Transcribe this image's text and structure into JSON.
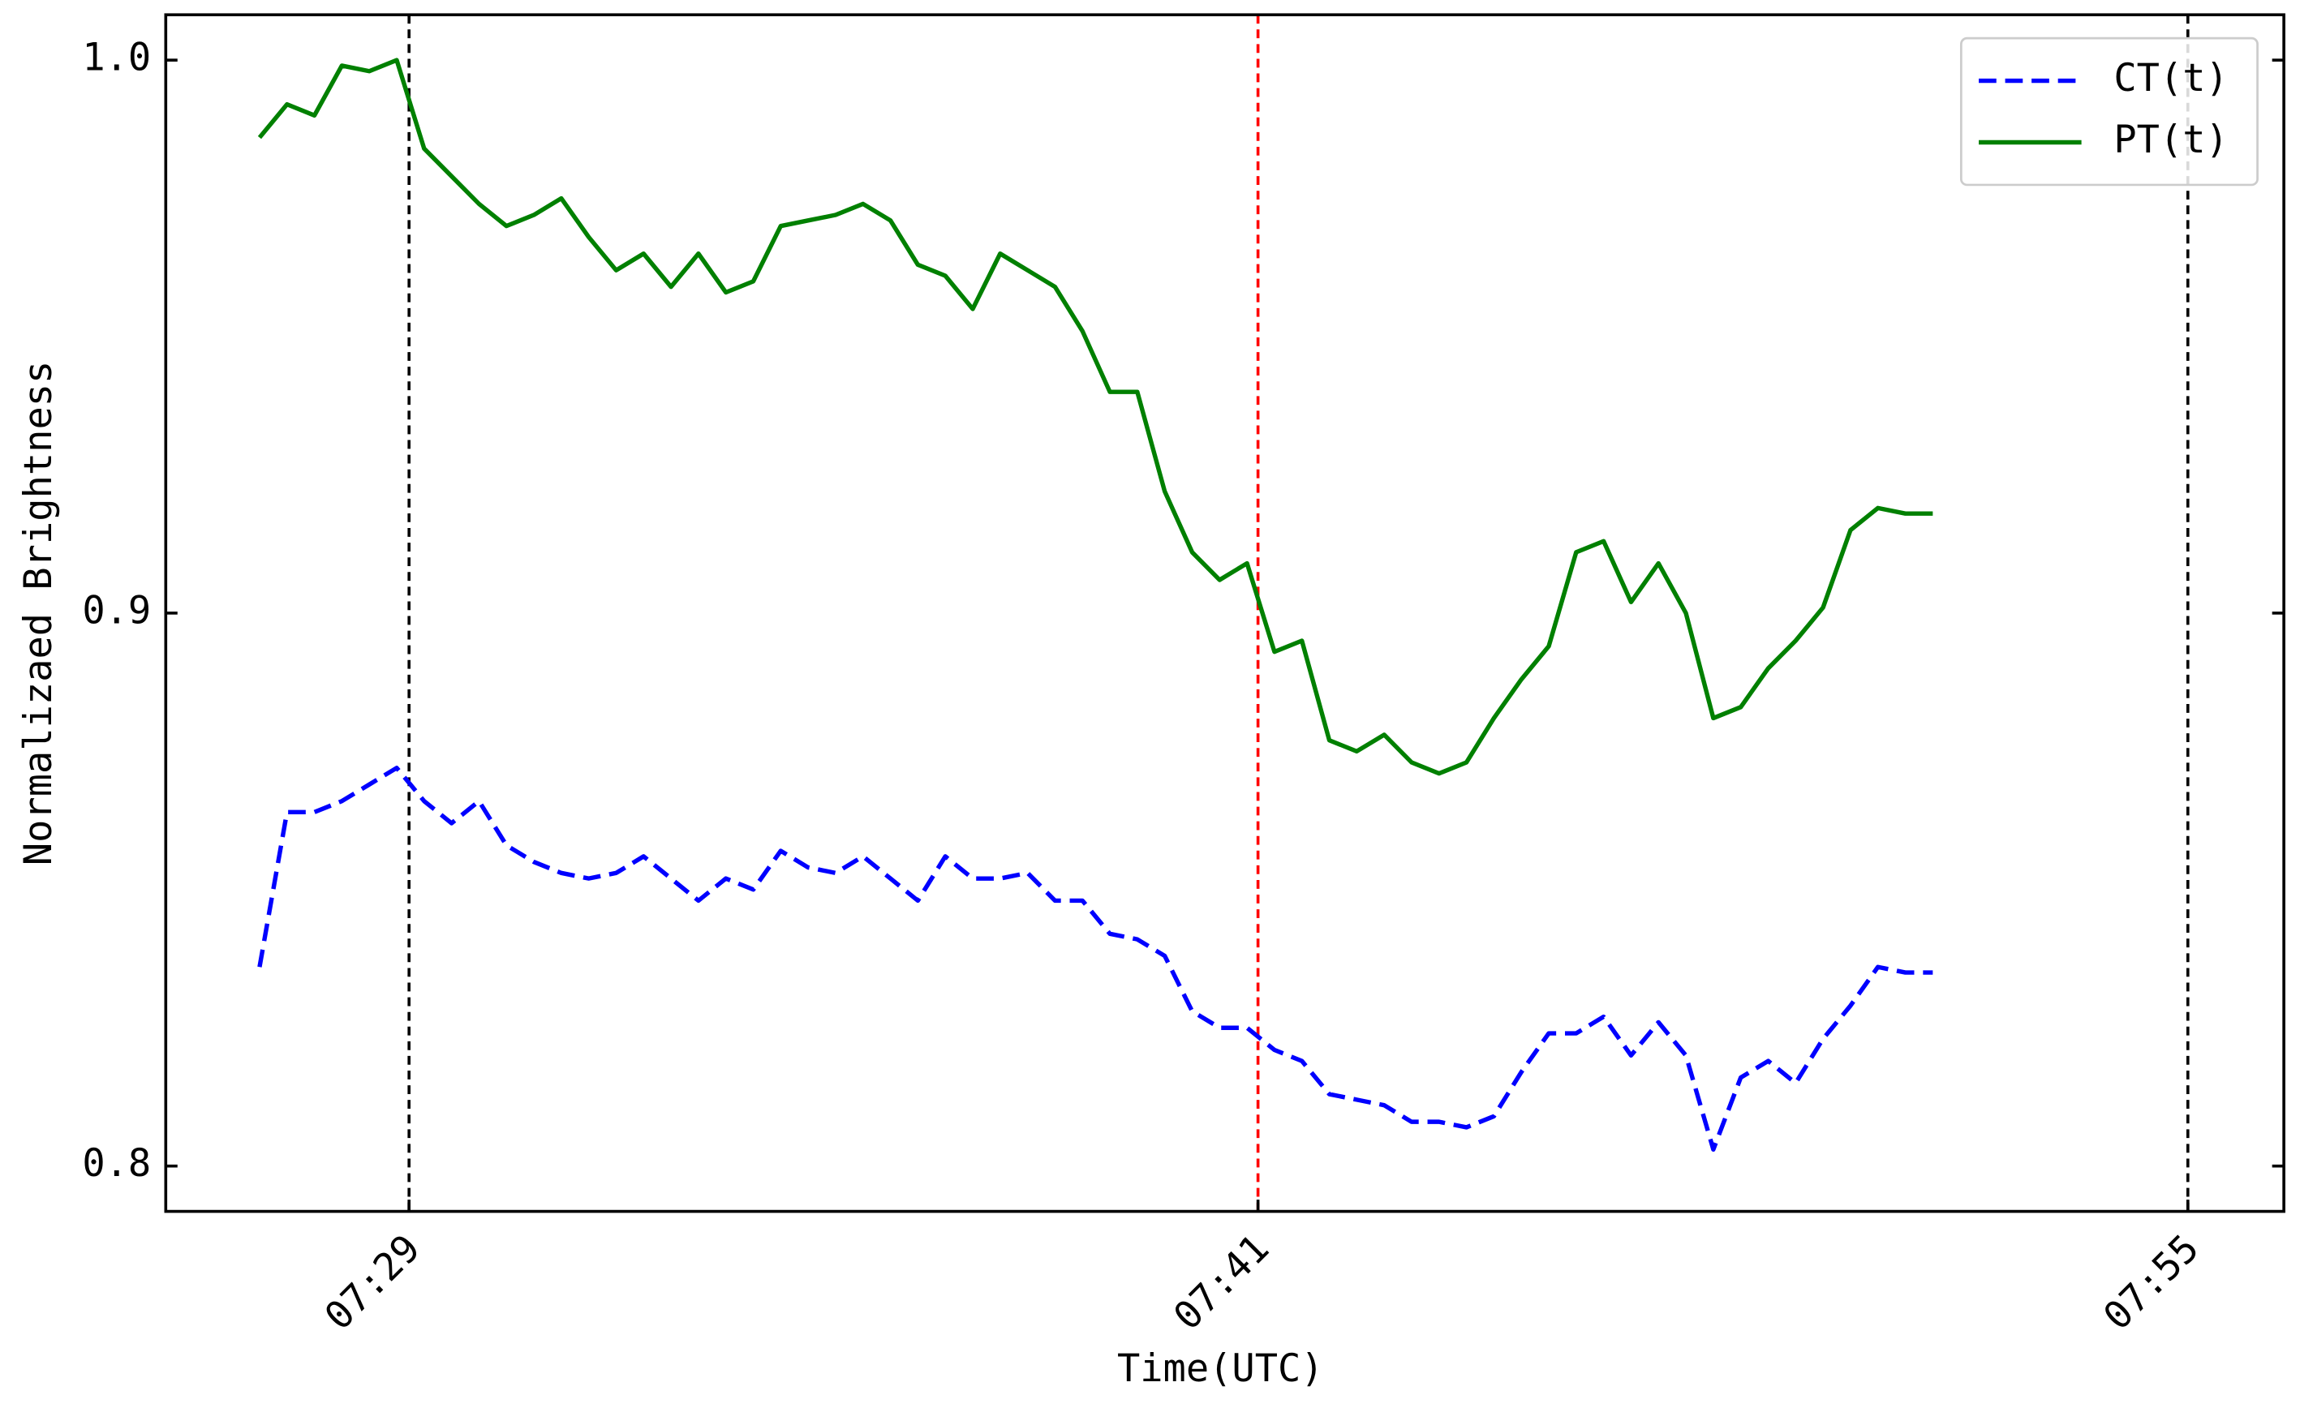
{
  "chart_data": {
    "type": "line",
    "x_label": "Time(UTC)",
    "y_label": "Normalizaed Brightness",
    "x": [
      0,
      1,
      2,
      3,
      4,
      5,
      6,
      7,
      8,
      9,
      10,
      11,
      12,
      13,
      14,
      15,
      16,
      17,
      18,
      19,
      20,
      21,
      22,
      23,
      24,
      25,
      26,
      27,
      28,
      29,
      30,
      31,
      32,
      33,
      34,
      35,
      36,
      37,
      38,
      39,
      40,
      41,
      42,
      43,
      44,
      45,
      46,
      47,
      48,
      49,
      50,
      51,
      52,
      53,
      54,
      55,
      56,
      57,
      58,
      59,
      60,
      61
    ],
    "series": [
      {
        "name": "CT(t)",
        "color": "#0000ff",
        "dash": true,
        "values": [
          0.836,
          0.864,
          0.864,
          0.866,
          0.869,
          0.872,
          0.866,
          0.862,
          0.866,
          0.858,
          0.855,
          0.853,
          0.852,
          0.853,
          0.856,
          0.852,
          0.848,
          0.852,
          0.85,
          0.857,
          0.854,
          0.853,
          0.856,
          0.852,
          0.848,
          0.856,
          0.852,
          0.852,
          0.853,
          0.848,
          0.848,
          0.842,
          0.841,
          0.838,
          0.828,
          0.825,
          0.825,
          0.821,
          0.819,
          0.813,
          0.812,
          0.811,
          0.808,
          0.808,
          0.807,
          0.809,
          0.817,
          0.824,
          0.824,
          0.827,
          0.82,
          0.826,
          0.82,
          0.803,
          0.816,
          0.819,
          0.815,
          0.823,
          0.829,
          0.836,
          0.835,
          0.835
        ]
      },
      {
        "name": "PT(t)",
        "color": "#008000",
        "dash": false,
        "values": [
          0.986,
          0.992,
          0.99,
          0.999,
          0.998,
          1.0,
          0.984,
          0.979,
          0.974,
          0.97,
          0.972,
          0.975,
          0.968,
          0.962,
          0.965,
          0.959,
          0.965,
          0.958,
          0.96,
          0.97,
          0.971,
          0.972,
          0.974,
          0.971,
          0.963,
          0.961,
          0.955,
          0.965,
          0.962,
          0.959,
          0.951,
          0.94,
          0.94,
          0.922,
          0.911,
          0.906,
          0.909,
          0.893,
          0.895,
          0.877,
          0.875,
          0.878,
          0.873,
          0.871,
          0.873,
          0.881,
          0.888,
          0.894,
          0.911,
          0.913,
          0.902,
          0.909,
          0.9,
          0.881,
          0.883,
          0.89,
          0.895,
          0.901,
          0.915,
          0.919,
          0.918,
          0.918
        ]
      }
    ],
    "xlim": [
      -3.42,
      73.8
    ],
    "xticks": [
      {
        "value": 5.45,
        "label": "07:29"
      },
      {
        "value": 36.4,
        "label": "07:41"
      },
      {
        "value": 70.3,
        "label": "07:55"
      }
    ],
    "ylim": [
      0.7918,
      1.0082
    ],
    "yticks": [
      {
        "value": 0.8,
        "label": "0.8"
      },
      {
        "value": 0.9,
        "label": "0.9"
      },
      {
        "value": 1.0,
        "label": "1.0"
      }
    ],
    "vlines": [
      {
        "x": 5.45,
        "color": "#000000"
      },
      {
        "x": 36.4,
        "color": "#ff0000"
      },
      {
        "x": 70.3,
        "color": "#000000"
      }
    ],
    "legend": "upper right",
    "grid": false
  }
}
